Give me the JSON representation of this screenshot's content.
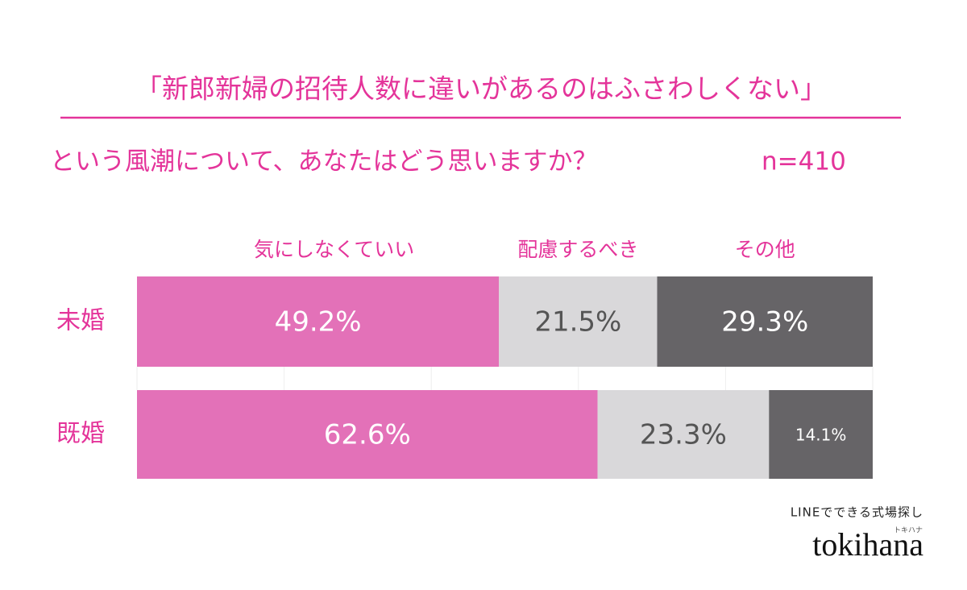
{
  "chart_data": {
    "type": "stacked-bar-horizontal",
    "title": "「新郎新婦の招待人数に違いがあるのはふさわしくない」",
    "subtitle": "という風潮について、あなたはどう思いますか？",
    "sample_size": "n=410",
    "categories": [
      "未婚",
      "既婚"
    ],
    "series": [
      {
        "name": "気にしなくていい",
        "color": "#e371b8",
        "values": [
          49.2,
          62.6
        ],
        "value_labels": [
          "49.2%",
          "62.6%"
        ]
      },
      {
        "name": "配慮するべき",
        "color": "#d9d8da",
        "values": [
          21.5,
          23.3
        ],
        "value_labels": [
          "21.5%",
          "23.3%"
        ]
      },
      {
        "name": "その他",
        "color": "#666467",
        "values": [
          29.3,
          14.1
        ],
        "value_labels": [
          "29.3%",
          "14.1%"
        ]
      }
    ],
    "xlim": [
      0,
      100
    ],
    "xticks": [
      0,
      20,
      40,
      60,
      80,
      100
    ],
    "grid": true
  },
  "branding": {
    "tagline": "LINEでできる式場探し",
    "logo": "tokihana",
    "logo_kana": "トキハナ"
  }
}
